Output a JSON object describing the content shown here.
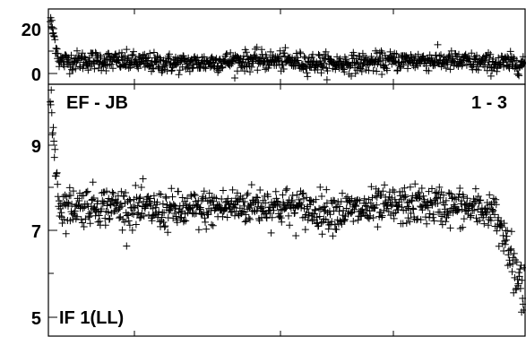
{
  "chart_data": [
    {
      "type": "scatter",
      "panel": "top",
      "title": "",
      "xlabel": "",
      "ylabel": "",
      "ylim": [
        -3,
        24
      ],
      "y_tick_labels": [
        "20",
        "0"
      ],
      "y_ticks": [
        20,
        0
      ],
      "x_points": 900,
      "series_summary": {
        "start_level": 20,
        "baseline_mean": 5,
        "noise_amplitude": 3.5
      },
      "annotations": [
        "EF - JB",
        "1 - 3"
      ]
    },
    {
      "type": "scatter",
      "panel": "bottom",
      "title": "",
      "xlabel": "",
      "ylabel": "",
      "ylim": [
        4.8,
        10.7
      ],
      "y_tick_labels": [
        "9",
        "7",
        "5"
      ],
      "y_ticks": [
        9,
        7,
        5
      ],
      "x_points": 900,
      "series_summary": {
        "start_level": 10.3,
        "baseline_mean": 7.8,
        "noise_amplitude": 0.45,
        "end_drop_to": 5.2
      },
      "annotations": [
        "IF 1(LL)"
      ]
    }
  ],
  "labels": {
    "top_tick_20": "20",
    "top_tick_0": "0",
    "baseline_label": "EF - JB",
    "channel_label": "1 - 3",
    "bottom_tick_9": "9",
    "bottom_tick_7": "7",
    "bottom_tick_5": "5",
    "if_label": "IF 1(LL)"
  }
}
